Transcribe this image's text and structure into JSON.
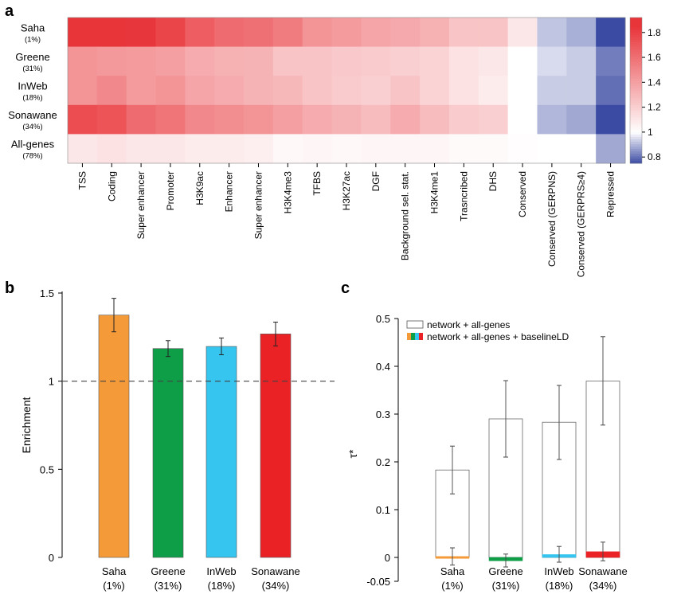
{
  "panel_letters": {
    "a": "a",
    "b": "b",
    "c": "c"
  },
  "colors": {
    "high": "#e8353a",
    "neutral": "#ffffff",
    "low": "#3b4ba3",
    "saha": "#f59a38",
    "greene": "#0e9e48",
    "inweb": "#35c5ef",
    "sonawane": "#ea2226",
    "grid_line": "#000000"
  },
  "chart_data": [
    {
      "type": "heatmap",
      "panel": "a",
      "title": "",
      "rows": [
        {
          "name": "Saha",
          "pct": "(1%)"
        },
        {
          "name": "Greene",
          "pct": "(31%)"
        },
        {
          "name": "InWeb",
          "pct": "(18%)"
        },
        {
          "name": "Sonawane",
          "pct": "(34%)"
        },
        {
          "name": "All-genes",
          "pct": "(78%)"
        }
      ],
      "columns": [
        "TSS",
        "Coding",
        "Super enhancer",
        "Promoter",
        "H3K9ac",
        "Enhancer",
        "Super enhancer",
        "H3K4me3",
        "TFBS",
        "H3K27ac",
        "DGF",
        "Background sel. stat.",
        "H3K4me1",
        "Trasncribed",
        "DHS",
        "Conserved",
        "Conserved (GERPNS)",
        "Conserved (GERPRS≥4)",
        "Repressed"
      ],
      "values": [
        [
          1.85,
          1.85,
          1.84,
          1.78,
          1.68,
          1.62,
          1.6,
          1.55,
          1.45,
          1.42,
          1.38,
          1.36,
          1.33,
          1.25,
          1.25,
          1.1,
          0.92,
          0.89,
          0.75
        ],
        [
          1.45,
          1.43,
          1.42,
          1.4,
          1.35,
          1.33,
          1.32,
          1.25,
          1.25,
          1.23,
          1.22,
          1.2,
          1.18,
          1.12,
          1.1,
          1.0,
          0.95,
          0.93,
          0.82
        ],
        [
          1.45,
          1.5,
          1.42,
          1.45,
          1.38,
          1.35,
          1.32,
          1.3,
          1.25,
          1.22,
          1.2,
          1.25,
          1.18,
          1.12,
          1.08,
          1.0,
          0.93,
          0.93,
          0.8
        ],
        [
          1.75,
          1.72,
          1.62,
          1.58,
          1.5,
          1.48,
          1.45,
          1.4,
          1.35,
          1.32,
          1.28,
          1.35,
          1.28,
          1.22,
          1.2,
          1.0,
          0.9,
          0.88,
          0.75
        ],
        [
          1.1,
          1.12,
          1.1,
          1.1,
          1.08,
          1.08,
          1.07,
          1.03,
          1.04,
          1.03,
          1.04,
          1.04,
          1.04,
          1.02,
          1.02,
          1.01,
          1.0,
          1.0,
          0.88
        ]
      ],
      "colorbar": {
        "min": 0.75,
        "max": 1.92,
        "ticks": [
          0.8,
          1,
          1.2,
          1.4,
          1.6,
          1.8
        ],
        "tick_labels": [
          "0.8",
          "1",
          "1.2",
          "1.4",
          "1.6",
          "1.8"
        ]
      }
    },
    {
      "type": "bar",
      "panel": "b",
      "title": "",
      "ylabel": "Enrichment",
      "xlabel": "",
      "ylim": [
        0,
        1.5
      ],
      "yticks": [
        0,
        0.5,
        1,
        1.5
      ],
      "ytick_labels": [
        "0",
        "0.5",
        "1",
        "1.5"
      ],
      "reference_line": 1,
      "categories": [
        {
          "name": "Saha",
          "pct": "(1%)"
        },
        {
          "name": "Greene",
          "pct": "(31%)"
        },
        {
          "name": "InWeb",
          "pct": "(18%)"
        },
        {
          "name": "Sonawane",
          "pct": "(34%)"
        }
      ],
      "values": [
        1.375,
        1.185,
        1.197,
        1.268
      ],
      "error_low": [
        1.28,
        1.14,
        1.15,
        1.2
      ],
      "error_high": [
        1.47,
        1.23,
        1.245,
        1.335
      ]
    },
    {
      "type": "bar",
      "panel": "c",
      "title": "",
      "ylabel": "τ*",
      "xlabel": "",
      "ylim": [
        -0.05,
        0.5
      ],
      "yticks": [
        -0.05,
        0,
        0.1,
        0.2,
        0.3,
        0.4,
        0.5
      ],
      "ytick_labels": [
        "-0.05",
        "0",
        "0.1",
        "0.2",
        "0.3",
        "0.4",
        "0.5"
      ],
      "legend_position": "top-left",
      "categories": [
        {
          "name": "Saha",
          "pct": "(1%)"
        },
        {
          "name": "Greene",
          "pct": "(31%)"
        },
        {
          "name": "InWeb",
          "pct": "(18%)"
        },
        {
          "name": "Sonawane",
          "pct": "(34%)"
        }
      ],
      "series": [
        {
          "name": "network + all-genes",
          "values": [
            0.183,
            0.29,
            0.283,
            0.369
          ],
          "error_low": [
            0.133,
            0.21,
            0.205,
            0.277
          ],
          "error_high": [
            0.233,
            0.37,
            0.36,
            0.462
          ]
        },
        {
          "name": "network + all-genes + baselineLD",
          "values": [
            0.002,
            -0.007,
            0.006,
            0.012
          ],
          "error_low": [
            -0.016,
            -0.02,
            -0.01,
            -0.007
          ],
          "error_high": [
            0.02,
            0.007,
            0.023,
            0.032
          ]
        }
      ]
    }
  ]
}
